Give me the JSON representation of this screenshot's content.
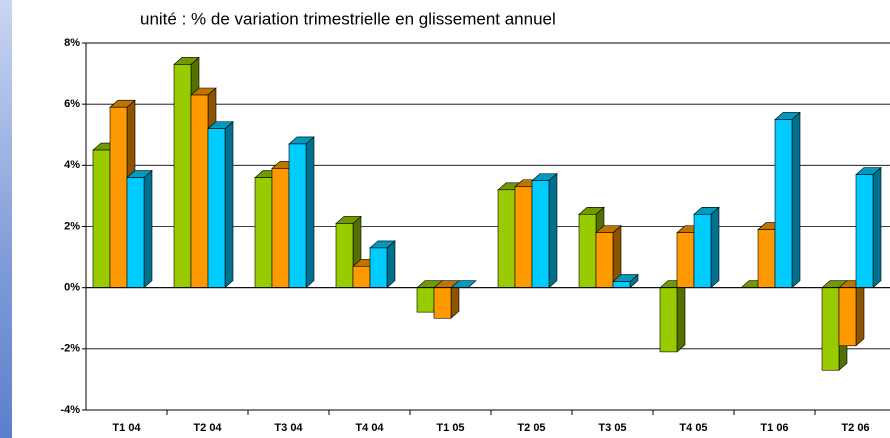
{
  "chart_data": {
    "type": "bar3d",
    "subtitle": "unité : % de variation trimestrielle en glissement annuel",
    "categories": [
      "T1 04",
      "T2 04",
      "T3 04",
      "T4 04",
      "T1 05",
      "T2 05",
      "T3 05",
      "T4 05",
      "T1 06",
      "T2 06"
    ],
    "series": [
      {
        "color": "#99cc00",
        "values": [
          4.5,
          7.3,
          3.6,
          2.1,
          -0.8,
          3.2,
          2.4,
          -2.1,
          0,
          -2.7
        ]
      },
      {
        "color": "#ff9900",
        "values": [
          5.9,
          6.3,
          3.9,
          0.7,
          -1.0,
          3.3,
          1.8,
          1.8,
          1.9,
          -1.9
        ]
      },
      {
        "color": "#00ccff",
        "values": [
          3.6,
          5.2,
          4.7,
          1.3,
          0,
          3.5,
          0.2,
          2.4,
          5.5,
          3.7
        ]
      }
    ],
    "ylim": [
      -4,
      8
    ],
    "yticks": [
      {
        "value": -4,
        "label": "-4%"
      },
      {
        "value": -2,
        "label": "-2%"
      },
      {
        "value": 0,
        "label": "0%"
      },
      {
        "value": 2,
        "label": "2%"
      },
      {
        "value": 4,
        "label": "4%"
      },
      {
        "value": 6,
        "label": "6%"
      },
      {
        "value": 8,
        "label": "8%"
      }
    ],
    "grid": true
  }
}
